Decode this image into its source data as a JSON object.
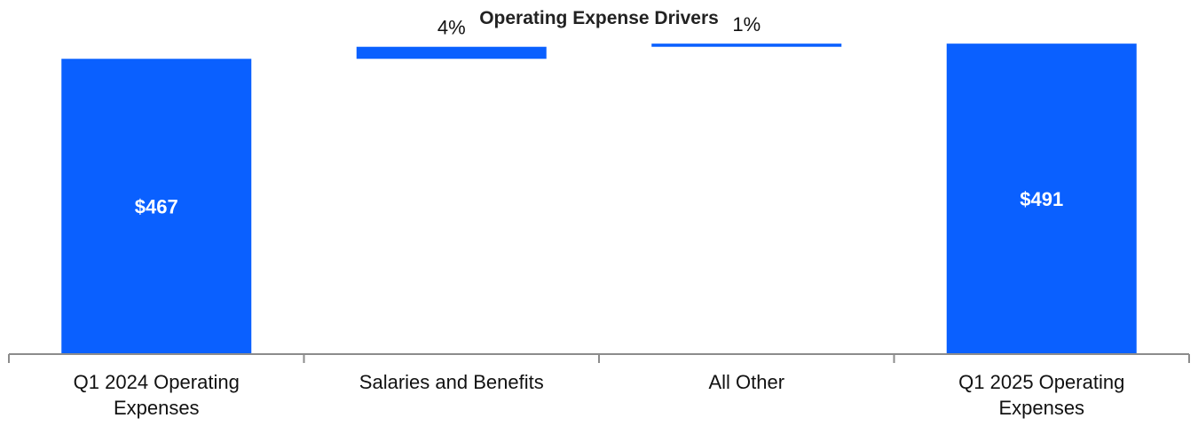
{
  "chart_data": {
    "type": "bar",
    "subtype": "waterfall",
    "title": "Operating Expense Drivers",
    "categories": [
      [
        "Q1 2024 Operating",
        "Expenses"
      ],
      [
        "Salaries and Benefits"
      ],
      [
        "All Other"
      ],
      [
        "Q1 2025 Operating",
        "Expenses"
      ]
    ],
    "bars": [
      {
        "kind": "total",
        "value": 467,
        "label": "$467"
      },
      {
        "kind": "delta",
        "value": 19,
        "label": "4%"
      },
      {
        "kind": "delta",
        "value": 5,
        "label": "1%"
      },
      {
        "kind": "total",
        "value": 491,
        "label": "$491"
      }
    ],
    "ylim": [
      0,
      560
    ],
    "xlabel": "",
    "ylabel": "",
    "grid": false,
    "colors": {
      "bar": "#0a60ff",
      "axis": "#8c8c8c"
    }
  }
}
